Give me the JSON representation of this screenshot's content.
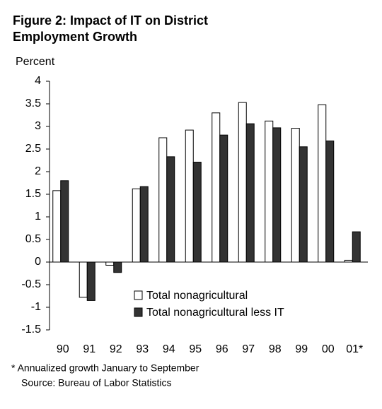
{
  "chart_data": {
    "type": "bar",
    "title": [
      "Figure 2: Impact of  IT on  District",
      "Employment Growth"
    ],
    "y_label": "Percent",
    "categories": [
      "90",
      "91",
      "92",
      "93",
      "94",
      "95",
      "96",
      "97",
      "98",
      "99",
      "00",
      "01*"
    ],
    "series": [
      {
        "name": "Total nonagricultural",
        "color": "#ffffff",
        "values": [
          1.58,
          -0.78,
          -0.07,
          1.62,
          2.75,
          2.92,
          3.3,
          3.53,
          3.12,
          2.96,
          3.48,
          0.04
        ]
      },
      {
        "name": "Total nonagricultural less IT",
        "color": "#333333",
        "values": [
          1.8,
          -0.85,
          -0.23,
          1.67,
          2.33,
          2.21,
          2.81,
          3.06,
          2.97,
          2.55,
          2.68,
          0.67
        ]
      }
    ],
    "ylim": [
      -1.5,
      4
    ],
    "yticks": [
      -1.5,
      -1,
      -0.5,
      0,
      0.5,
      1,
      1.5,
      2,
      2.5,
      3,
      3.5,
      4
    ],
    "grid": false,
    "legend": "center",
    "notes": [
      "* Annualized growth January to September",
      "Source: Bureau of Labor Statistics"
    ]
  }
}
